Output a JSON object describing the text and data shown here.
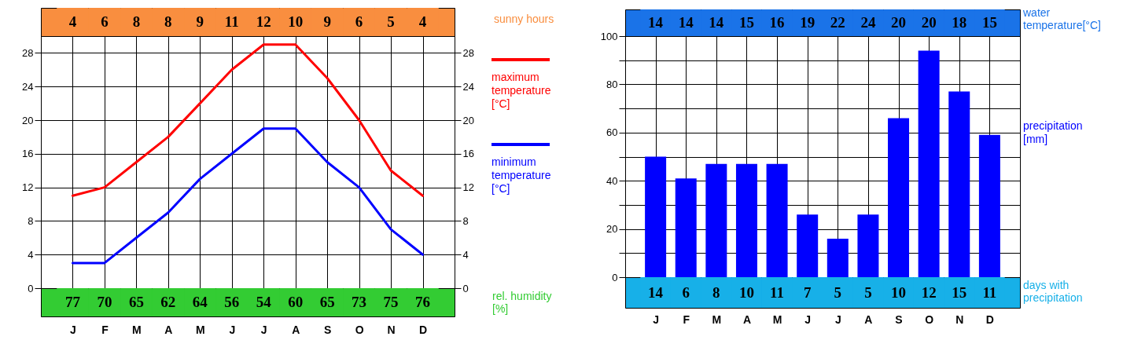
{
  "chart_data": [
    {
      "type": "other",
      "categories": [
        null,
        null,
        null,
        null,
        null,
        null,
        null,
        null,
        null,
        null,
        null,
        null
      ],
      "data_labels": true,
      "series": [
        {
          "name": "sunny hours",
          "color": "#f98e3f",
          "values": [
            4,
            6,
            8,
            8,
            9,
            11,
            12,
            10,
            9,
            6,
            5,
            4
          ]
        }
      ]
    },
    {
      "type": "line",
      "categories": [
        "J",
        "F",
        "M",
        "A",
        "M",
        "J",
        "J",
        "A",
        "S",
        "O",
        "N",
        "D"
      ],
      "ylim": [
        0,
        30
      ],
      "yticks": [
        0,
        4,
        8,
        12,
        16,
        20,
        24,
        28
      ],
      "y2lim": [
        0,
        30
      ],
      "y2ticks": [
        0,
        4,
        8,
        12,
        16,
        20,
        24,
        28
      ],
      "grid": true,
      "legend": "right",
      "series": [
        {
          "name": "maximum temperature [°C]",
          "color": "#ff0000",
          "values": [
            11,
            12,
            15,
            18,
            22,
            26,
            29,
            29,
            25,
            20,
            14,
            11
          ]
        },
        {
          "name": "minimum temperature [°C]",
          "color": "#0000ff",
          "values": [
            3,
            3,
            6,
            9,
            13,
            16,
            19,
            19,
            15,
            12,
            7,
            4
          ]
        }
      ]
    },
    {
      "type": "other",
      "categories": [
        null,
        null,
        null,
        null,
        null,
        null,
        null,
        null,
        null,
        null,
        null,
        null
      ],
      "data_labels": true,
      "series": [
        {
          "name": "rel. humidity [%]",
          "color": "#33cc33",
          "values": [
            77,
            70,
            65,
            62,
            64,
            56,
            54,
            60,
            65,
            73,
            75,
            76
          ]
        }
      ]
    },
    {
      "type": "other",
      "categories": [
        null,
        null,
        null,
        null,
        null,
        null,
        null,
        null,
        null,
        null,
        null,
        null
      ],
      "data_labels": true,
      "series": [
        {
          "name": "water temperature[°C]",
          "color": "#1a73e8",
          "values": [
            14,
            14,
            14,
            15,
            16,
            19,
            22,
            24,
            20,
            20,
            18,
            15
          ]
        }
      ]
    },
    {
      "type": "bar",
      "categories": [
        "J",
        "F",
        "M",
        "A",
        "M",
        "J",
        "J",
        "A",
        "S",
        "O",
        "N",
        "D"
      ],
      "ylim": [
        0,
        100
      ],
      "yticks": [
        0,
        {
          "value": 10,
          "label": null
        },
        20,
        {
          "value": 30,
          "label": null
        },
        40,
        {
          "value": 50,
          "label": null
        },
        60,
        {
          "value": 70,
          "label": null
        },
        80,
        {
          "value": 90,
          "label": null
        },
        100
      ],
      "grid": true,
      "legend": "right",
      "series": [
        {
          "name": "precipitation [mm]",
          "color": "#0000ff",
          "values": [
            50,
            41,
            47,
            47,
            47,
            26,
            16,
            26,
            66,
            94,
            77,
            59
          ]
        }
      ]
    },
    {
      "type": "other",
      "categories": [
        null,
        null,
        null,
        null,
        null,
        null,
        null,
        null,
        null,
        null,
        null,
        null
      ],
      "data_labels": true,
      "series": [
        {
          "name": "days with precipitation",
          "color": "#17b0e8",
          "values": [
            14,
            6,
            8,
            10,
            11,
            7,
            5,
            5,
            10,
            12,
            15,
            11
          ]
        }
      ]
    }
  ]
}
